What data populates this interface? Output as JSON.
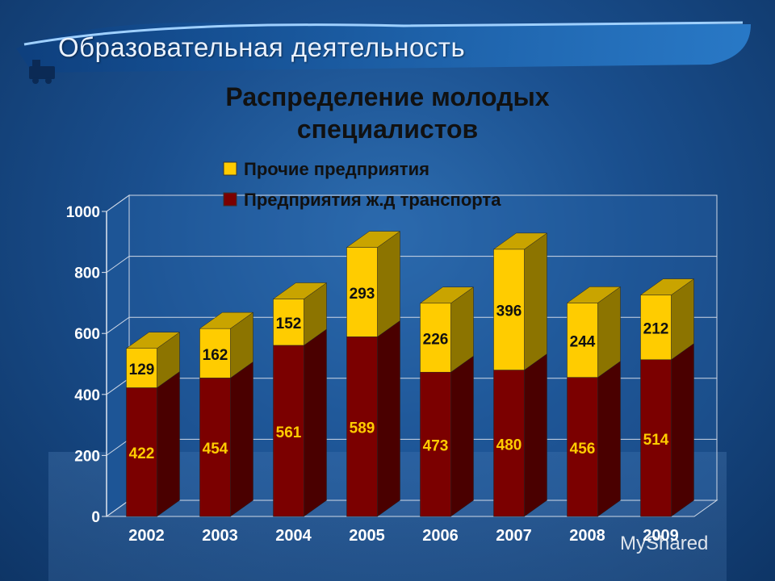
{
  "banner": {
    "title": "Образовательная деятельность"
  },
  "watermark": {
    "text": "MyShared"
  },
  "colors": {
    "rail_front": "#7b0000",
    "rail_side": "#4a0000",
    "rail_top": "#9a1a1a",
    "other_front": "#ffcc00",
    "other_side": "#8c7400",
    "other_top": "#c9a400",
    "rail_label": "#ffcc00",
    "other_label": "#111111"
  },
  "chart_data": {
    "type": "bar",
    "stacked": true,
    "title_lines": [
      "Распределение молодых",
      "специалистов"
    ],
    "categories": [
      "2002",
      "2003",
      "2004",
      "2005",
      "2006",
      "2007",
      "2008",
      "2009"
    ],
    "series": [
      {
        "name": "Предприятия ж.д транспорта",
        "values": [
          422,
          454,
          561,
          589,
          473,
          480,
          456,
          514
        ]
      },
      {
        "name": "Прочие предприятия",
        "values": [
          129,
          162,
          152,
          293,
          226,
          396,
          244,
          212
        ]
      }
    ],
    "ylim": [
      0,
      1000
    ],
    "yticks": [
      "0",
      "200",
      "400",
      "600",
      "800",
      "1000"
    ],
    "legend_position": "top",
    "grid": true,
    "xlabel": "",
    "ylabel": ""
  }
}
